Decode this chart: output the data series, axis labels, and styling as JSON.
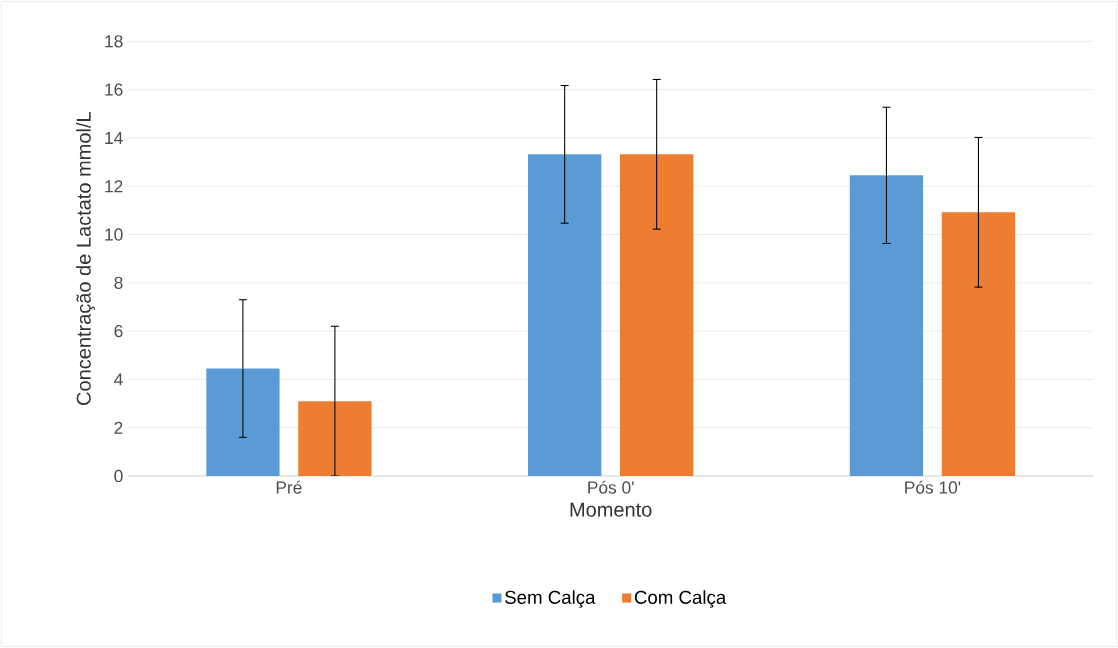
{
  "chart_data": {
    "type": "bar",
    "xlabel": "Momento",
    "ylabel": "Concentração de Lactato mmol/L",
    "categories": [
      "Pré",
      "Pós 0'",
      "Pós 10'"
    ],
    "series": [
      {
        "name": "Sem Calça",
        "color": "#5b9bd5",
        "values": [
          4.45,
          13.32,
          12.45
        ],
        "errors": [
          2.85,
          2.85,
          2.82
        ]
      },
      {
        "name": "Com Calça",
        "color": "#ed7d31",
        "values": [
          3.1,
          13.32,
          10.92
        ],
        "errors": [
          3.1,
          3.1,
          3.1
        ]
      }
    ],
    "ylim": [
      0,
      18
    ],
    "yticks": [
      0,
      2,
      4,
      6,
      8,
      10,
      12,
      14,
      16,
      18
    ],
    "grid": "y",
    "legend": "bottom"
  }
}
